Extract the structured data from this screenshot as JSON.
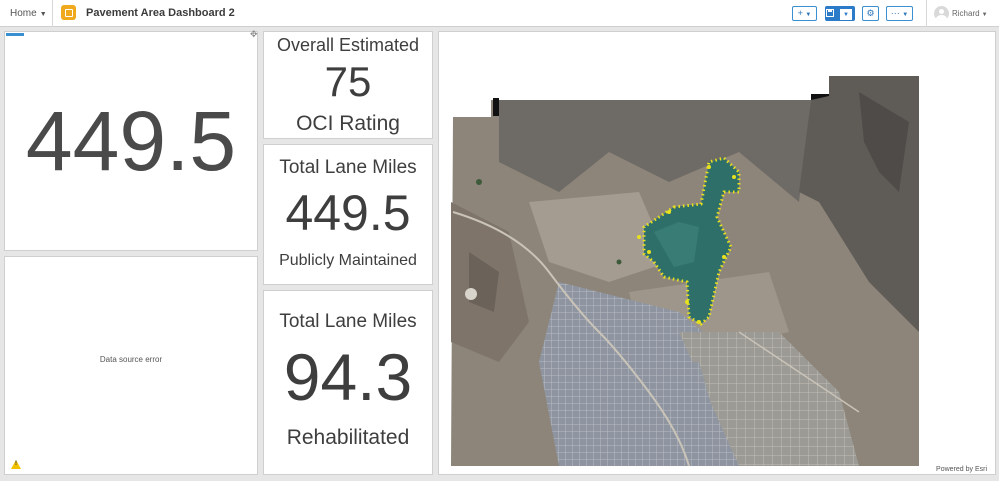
{
  "topbar": {
    "home_label": "Home",
    "app_title": "Pavement Area Dashboard 2",
    "add_label": "+",
    "more_label": "···",
    "user_name": "Richard"
  },
  "indicators": {
    "big": {
      "value": "449.5"
    },
    "oci": {
      "title": "Overall Estimated",
      "value": "75",
      "subtitle": "OCI Rating"
    },
    "lane_miles": {
      "title": "Total Lane Miles",
      "value": "449.5",
      "subtitle": "Publicly Maintained"
    },
    "rehab": {
      "title": "Total Lane Miles",
      "value": "94.3",
      "subtitle": "Rehabilitated"
    }
  },
  "error_panel": {
    "message": "Data source error"
  },
  "map": {
    "attribution": "Powered by Esri"
  },
  "colors": {
    "accent": "#2b7bc9",
    "logo": "#f0a81c",
    "warning": "#f2c200",
    "map_points": "#e8e21e"
  }
}
